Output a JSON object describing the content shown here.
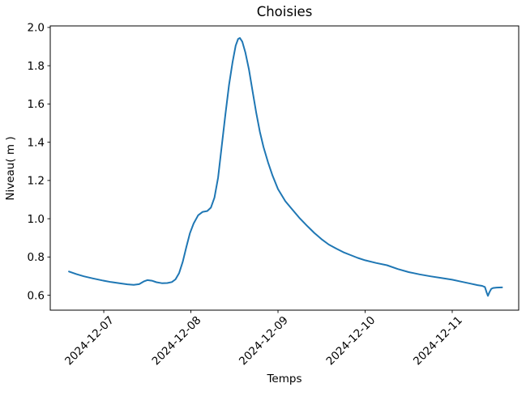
{
  "chart_data": {
    "type": "line",
    "title": "Choisies",
    "xlabel": "Temps",
    "ylabel": "Niveau( m )",
    "background_color": "#ffffff",
    "axes_color": "#000000",
    "grid": false,
    "legend": false,
    "x_tick_rotation_deg": 45,
    "x_tick_labels": [
      "2024-12-07",
      "2024-12-08",
      "2024-12-09",
      "2024-12-10",
      "2024-12-11"
    ],
    "y_tick_labels": [
      "0.6",
      "0.8",
      "1.0",
      "1.2",
      "1.4",
      "1.6",
      "1.8",
      "2.0"
    ],
    "ylim": [
      0.522,
      2.008
    ],
    "xlim": [
      "2024-12-06 09:15",
      "2024-12-11 18:19"
    ],
    "series": [
      {
        "name": "niveau",
        "color": "#1f77b4",
        "points": [
          [
            "2024-12-06 14:24",
            0.724
          ],
          [
            "2024-12-06 16:30",
            0.71
          ],
          [
            "2024-12-06 18:30",
            0.699
          ],
          [
            "2024-12-06 21:00",
            0.688
          ],
          [
            "2024-12-06 23:30",
            0.678
          ],
          [
            "2024-12-07 02:00",
            0.669
          ],
          [
            "2024-12-07 04:30",
            0.662
          ],
          [
            "2024-12-07 06:30",
            0.657
          ],
          [
            "2024-12-07 08:15",
            0.654
          ],
          [
            "2024-12-07 09:45",
            0.658
          ],
          [
            "2024-12-07 11:00",
            0.672
          ],
          [
            "2024-12-07 12:00",
            0.679
          ],
          [
            "2024-12-07 13:15",
            0.676
          ],
          [
            "2024-12-07 14:30",
            0.668
          ],
          [
            "2024-12-07 16:00",
            0.663
          ],
          [
            "2024-12-07 17:30",
            0.664
          ],
          [
            "2024-12-07 18:45",
            0.669
          ],
          [
            "2024-12-07 19:45",
            0.683
          ],
          [
            "2024-12-07 20:45",
            0.716
          ],
          [
            "2024-12-07 21:45",
            0.775
          ],
          [
            "2024-12-07 22:45",
            0.852
          ],
          [
            "2024-12-07 23:45",
            0.925
          ],
          [
            "2024-12-08 00:45",
            0.975
          ],
          [
            "2024-12-08 02:00",
            1.018
          ],
          [
            "2024-12-08 03:15",
            1.036
          ],
          [
            "2024-12-08 04:30",
            1.04
          ],
          [
            "2024-12-08 05:30",
            1.058
          ],
          [
            "2024-12-08 06:30",
            1.11
          ],
          [
            "2024-12-08 07:30",
            1.215
          ],
          [
            "2024-12-08 08:30",
            1.38
          ],
          [
            "2024-12-08 09:30",
            1.545
          ],
          [
            "2024-12-08 10:30",
            1.7
          ],
          [
            "2024-12-08 11:30",
            1.82
          ],
          [
            "2024-12-08 12:20",
            1.905
          ],
          [
            "2024-12-08 13:00",
            1.94
          ],
          [
            "2024-12-08 13:30",
            1.945
          ],
          [
            "2024-12-08 14:10",
            1.925
          ],
          [
            "2024-12-08 15:00",
            1.87
          ],
          [
            "2024-12-08 16:00",
            1.78
          ],
          [
            "2024-12-08 17:00",
            1.665
          ],
          [
            "2024-12-08 18:00",
            1.555
          ],
          [
            "2024-12-08 19:00",
            1.455
          ],
          [
            "2024-12-08 20:00",
            1.375
          ],
          [
            "2024-12-08 21:15",
            1.295
          ],
          [
            "2024-12-08 22:30",
            1.225
          ],
          [
            "2024-12-09 00:00",
            1.155
          ],
          [
            "2024-12-09 02:00",
            1.092
          ],
          [
            "2024-12-09 04:00",
            1.047
          ],
          [
            "2024-12-09 06:00",
            1.002
          ],
          [
            "2024-12-09 08:00",
            0.963
          ],
          [
            "2024-12-09 10:00",
            0.926
          ],
          [
            "2024-12-09 12:00",
            0.893
          ],
          [
            "2024-12-09 14:00",
            0.865
          ],
          [
            "2024-12-09 16:00",
            0.844
          ],
          [
            "2024-12-09 18:00",
            0.825
          ],
          [
            "2024-12-09 20:00",
            0.81
          ],
          [
            "2024-12-09 22:00",
            0.795
          ],
          [
            "2024-12-10 00:00",
            0.783
          ],
          [
            "2024-12-10 03:00",
            0.769
          ],
          [
            "2024-12-10 06:00",
            0.757
          ],
          [
            "2024-12-10 09:00",
            0.737
          ],
          [
            "2024-12-10 12:00",
            0.721
          ],
          [
            "2024-12-10 15:00",
            0.709
          ],
          [
            "2024-12-10 18:00",
            0.699
          ],
          [
            "2024-12-10 21:00",
            0.69
          ],
          [
            "2024-12-11 00:00",
            0.681
          ],
          [
            "2024-12-11 02:30",
            0.671
          ],
          [
            "2024-12-11 05:00",
            0.661
          ],
          [
            "2024-12-11 07:00",
            0.653
          ],
          [
            "2024-12-11 08:15",
            0.649
          ],
          [
            "2024-12-11 09:00",
            0.643
          ],
          [
            "2024-12-11 09:30",
            0.614
          ],
          [
            "2024-12-11 09:50",
            0.597
          ],
          [
            "2024-12-11 10:15",
            0.616
          ],
          [
            "2024-12-11 10:45",
            0.633
          ],
          [
            "2024-12-11 11:15",
            0.638
          ],
          [
            "2024-12-11 12:15",
            0.64
          ],
          [
            "2024-12-11 13:45",
            0.641
          ]
        ]
      }
    ]
  }
}
